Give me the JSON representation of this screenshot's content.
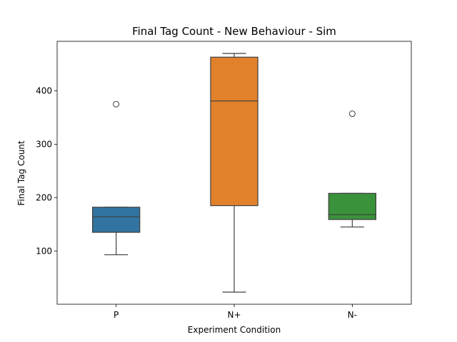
{
  "chart_data": {
    "type": "box",
    "title": "Final Tag Count - New Behaviour - Sim",
    "xlabel": "Experiment Condition",
    "ylabel": "Final Tag Count",
    "categories": [
      "P",
      "N+",
      "N-"
    ],
    "ylim": [
      0,
      480
    ],
    "yticks": [
      100,
      200,
      300,
      400
    ],
    "grid": false,
    "boxes": [
      {
        "category": "P",
        "whisker_low": 93,
        "q1": 135,
        "median": 164,
        "q3": 182,
        "whisker_high": 182,
        "outliers": [
          375
        ],
        "color": "#3274a1"
      },
      {
        "category": "N+",
        "whisker_low": 23,
        "q1": 185,
        "median": 381,
        "q3": 463,
        "whisker_high": 470,
        "outliers": [],
        "color": "#e1812c"
      },
      {
        "category": "N-",
        "whisker_low": 145,
        "q1": 159,
        "median": 168,
        "q3": 208,
        "whisker_high": 208,
        "outliers": [
          357
        ],
        "color": "#3a923a"
      }
    ]
  }
}
